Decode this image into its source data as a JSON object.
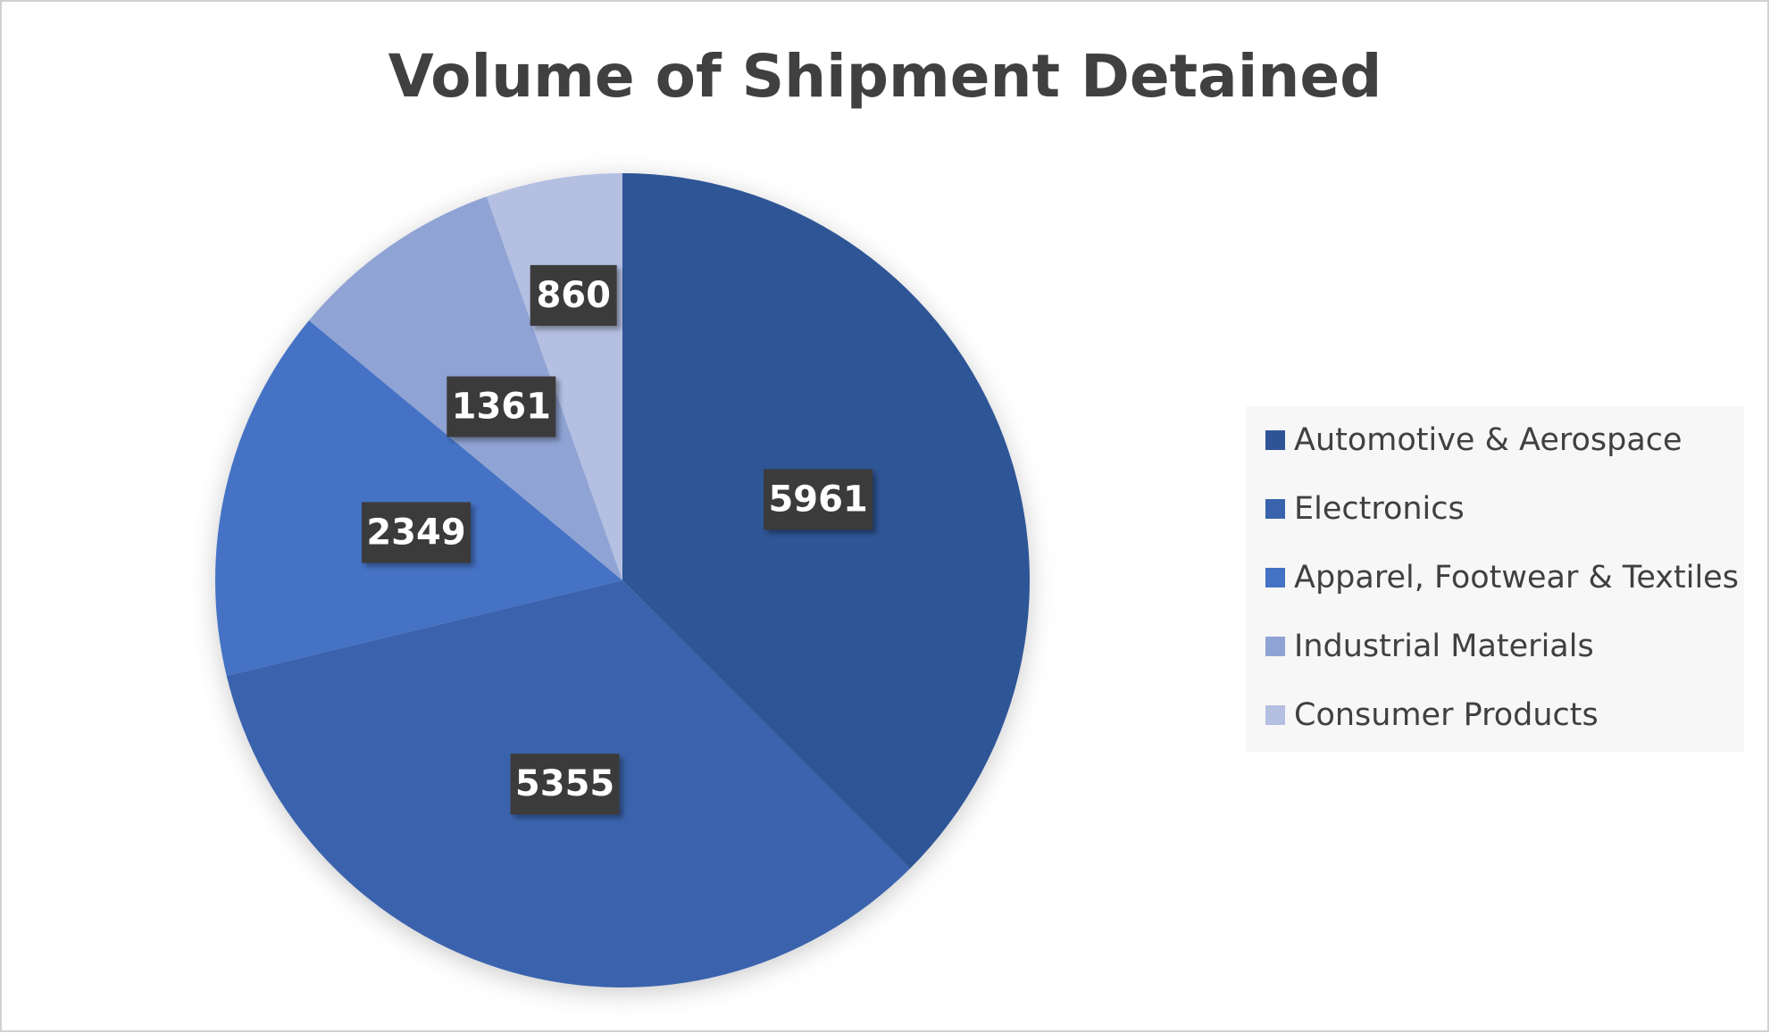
{
  "chart_data": {
    "type": "pie",
    "title": "Volume of Shipment Detained",
    "categories": [
      "Automotive & Aerospace",
      "Electronics",
      "Apparel, Footwear & Textiles",
      "Industrial Materials",
      "Consumer Products"
    ],
    "values": [
      5961,
      5355,
      2349,
      1361,
      860
    ],
    "colors": [
      "#2f5496",
      "#3a63ad",
      "#4472c4",
      "#8fa3d4",
      "#b4bfe2"
    ],
    "legend": "right"
  }
}
